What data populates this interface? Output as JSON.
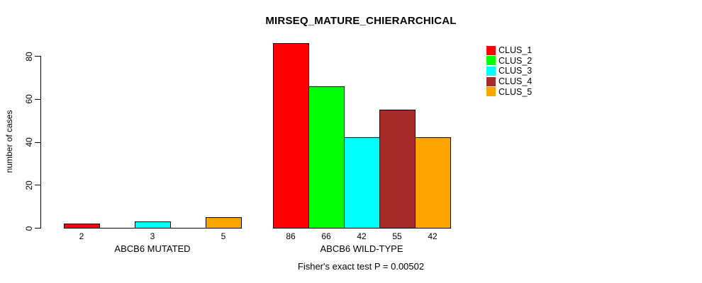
{
  "title": "MIRSEQ_MATURE_CHIERARCHICAL",
  "background": "#FFFFFF",
  "chart_data": {
    "type": "bar",
    "title": "MIRSEQ_MATURE_CHIERARCHICAL",
    "ylabel": "number of cases",
    "xlabel": "",
    "ylim": [
      0,
      80
    ],
    "yticks": [
      0,
      20,
      40,
      60,
      80
    ],
    "grid": false,
    "series": [
      "CLUS_1",
      "CLUS_2",
      "CLUS_3",
      "CLUS_4",
      "CLUS_5"
    ],
    "series_colors": [
      "#FF0000",
      "#00FF00",
      "#00FFFF",
      "#A52A2A",
      "#FFA500"
    ],
    "groups": [
      {
        "label": "ABCB6 MUTATED",
        "values": [
          2,
          0,
          3,
          0,
          5
        ],
        "bar_labels": [
          "2",
          "",
          "3",
          "",
          "5"
        ]
      },
      {
        "label": "ABCB6 WILD-TYPE",
        "values": [
          86,
          66,
          42,
          55,
          42
        ],
        "bar_labels": [
          "86",
          "66",
          "42",
          "55",
          "42"
        ]
      }
    ],
    "legend": {
      "position": "right",
      "entries": [
        {
          "label": "CLUS_1",
          "color": "#FF0000"
        },
        {
          "label": "CLUS_2",
          "color": "#00FF00"
        },
        {
          "label": "CLUS_3",
          "color": "#00FFFF"
        },
        {
          "label": "CLUS_4",
          "color": "#A52A2A"
        },
        {
          "label": "CLUS_5",
          "color": "#FFA500"
        }
      ]
    },
    "annotation": "Fisher's exact test P = 0.00502"
  }
}
